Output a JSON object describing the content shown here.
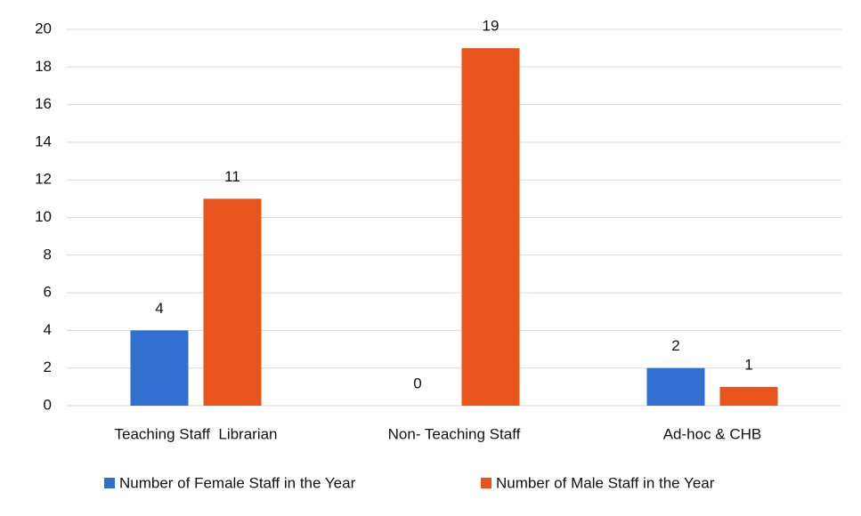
{
  "chart_data": {
    "type": "bar",
    "categories": [
      "Teaching Staff  Librarian",
      "Non- Teaching Staff",
      "Ad-hoc & CHB"
    ],
    "series": [
      {
        "name": "Number of Female Staff in the Year",
        "color": "#2f6fd0",
        "values": [
          4,
          0,
          2
        ]
      },
      {
        "name": "Number of Male Staff in the Year",
        "color": "#e9541d",
        "values": [
          11,
          19,
          1
        ]
      }
    ],
    "ylim": [
      0,
      20
    ],
    "yticks": [
      0,
      2,
      4,
      6,
      8,
      10,
      12,
      14,
      16,
      18,
      20
    ],
    "grid": true,
    "legend": "bottom"
  }
}
